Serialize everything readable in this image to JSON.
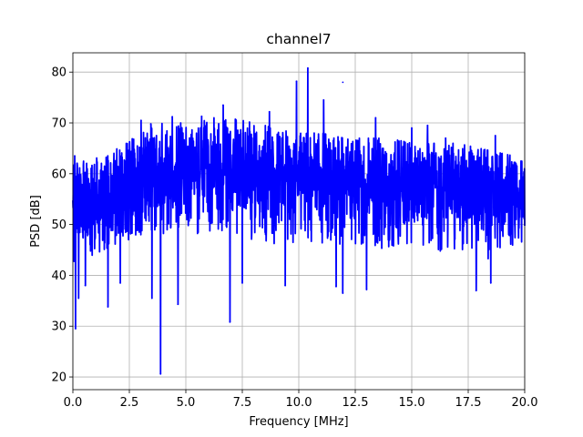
{
  "chart_data": {
    "type": "line",
    "title": "channel7",
    "xlabel": "Frequency [MHz]",
    "ylabel": "PSD [dB]",
    "xlim": [
      0,
      20
    ],
    "ylim": [
      17.5,
      83.8
    ],
    "xticks": [
      0.0,
      2.5,
      5.0,
      7.5,
      10.0,
      12.5,
      15.0,
      17.5,
      20.0
    ],
    "xtick_labels": [
      "0.0",
      "2.5",
      "5.0",
      "7.5",
      "10.0",
      "12.5",
      "15.0",
      "17.5",
      "20.0"
    ],
    "yticks": [
      20,
      30,
      40,
      50,
      60,
      70,
      80
    ],
    "ytick_labels": [
      "20",
      "30",
      "40",
      "50",
      "60",
      "70",
      "80"
    ],
    "grid": true,
    "series": [
      {
        "color": "#0000ff",
        "style": "dense noisy PSD trace",
        "envelope": {
          "x": [
            0.0,
            1.0,
            2.0,
            3.0,
            4.0,
            5.0,
            6.0,
            7.0,
            8.0,
            9.0,
            10.0,
            11.0,
            12.0,
            13.0,
            14.0,
            15.0,
            16.0,
            17.0,
            18.0,
            19.0,
            20.0
          ],
          "mean": [
            52,
            54,
            56,
            58,
            59,
            60,
            60.5,
            60.5,
            60,
            59.5,
            59,
            59,
            58.5,
            58,
            57.5,
            57,
            57,
            56.5,
            56,
            55.5,
            55
          ],
          "upper": [
            62,
            63,
            65,
            68,
            70,
            70,
            71,
            71,
            70,
            69,
            68,
            68,
            67,
            67,
            67,
            66,
            66,
            66,
            65,
            64,
            63
          ],
          "lower": [
            40,
            44,
            46,
            48,
            48,
            48,
            48,
            48,
            47,
            46,
            46,
            46,
            46,
            46,
            45,
            45,
            45,
            44,
            43,
            43,
            44
          ]
        },
        "peaks": [
          {
            "x": 0.08,
            "y": 63.5
          },
          {
            "x": 3.02,
            "y": 70.5
          },
          {
            "x": 3.45,
            "y": 69.8
          },
          {
            "x": 4.4,
            "y": 71.2
          },
          {
            "x": 5.7,
            "y": 71.3
          },
          {
            "x": 6.65,
            "y": 73.5
          },
          {
            "x": 8.7,
            "y": 72.2
          },
          {
            "x": 9.9,
            "y": 78.2
          },
          {
            "x": 10.4,
            "y": 80.8
          },
          {
            "x": 11.1,
            "y": 74.5
          },
          {
            "x": 11.95,
            "y": 78.0
          },
          {
            "x": 13.4,
            "y": 71.0
          },
          {
            "x": 15.0,
            "y": 69.0
          },
          {
            "x": 15.7,
            "y": 69.5
          },
          {
            "x": 16.5,
            "y": 67.0
          },
          {
            "x": 18.7,
            "y": 67.5
          }
        ],
        "dips": [
          {
            "x": 0.12,
            "y": 29.5
          },
          {
            "x": 0.25,
            "y": 35.5
          },
          {
            "x": 0.55,
            "y": 38.0
          },
          {
            "x": 1.55,
            "y": 33.8
          },
          {
            "x": 2.1,
            "y": 38.5
          },
          {
            "x": 3.5,
            "y": 35.5
          },
          {
            "x": 3.88,
            "y": 20.6
          },
          {
            "x": 4.65,
            "y": 34.3
          },
          {
            "x": 6.95,
            "y": 30.8
          },
          {
            "x": 7.5,
            "y": 38.5
          },
          {
            "x": 9.4,
            "y": 38.0
          },
          {
            "x": 11.65,
            "y": 37.8
          },
          {
            "x": 11.95,
            "y": 36.5
          },
          {
            "x": 13.0,
            "y": 37.2
          },
          {
            "x": 17.85,
            "y": 37.0
          },
          {
            "x": 18.5,
            "y": 38.5
          }
        ]
      }
    ]
  }
}
